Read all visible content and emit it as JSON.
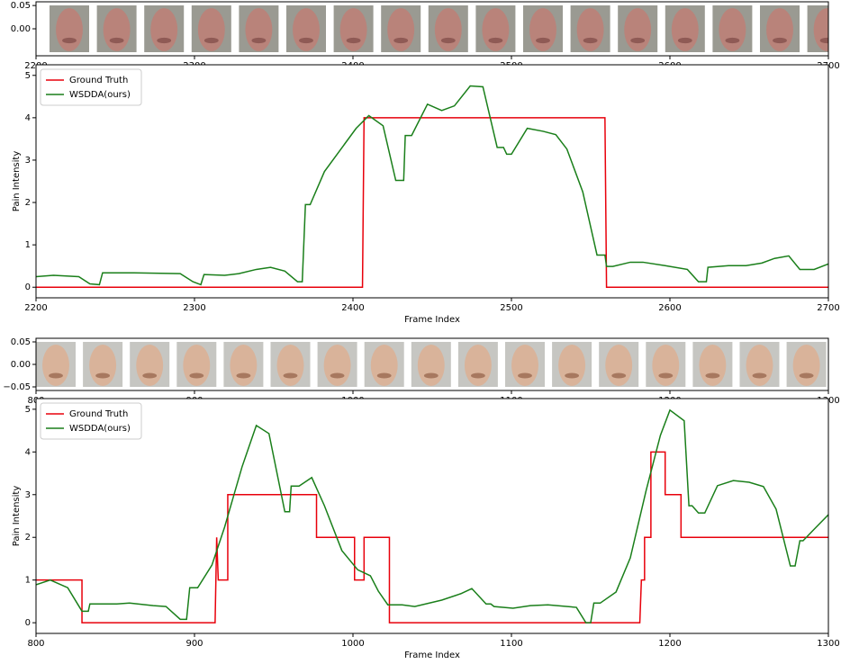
{
  "chart_data": [
    {
      "type": "image-strip",
      "xlim": [
        2200,
        2700
      ],
      "xticks": [
        2200,
        2300,
        2400,
        2500,
        2600,
        2700
      ],
      "ylim": [
        -0.058,
        0.058
      ],
      "yticks": [
        {
          "value": 0.05,
          "label": "0.05"
        },
        {
          "value": 0,
          "label": "0.00"
        }
      ]
    },
    {
      "type": "line",
      "xlabel": "Frame Index",
      "ylabel": "Pain Intensity",
      "legend": "upper left",
      "xlim": [
        2200,
        2700
      ],
      "xticks": [
        2200,
        2300,
        2400,
        2500,
        2600,
        2700
      ],
      "ylim": [
        -0.25,
        5.25
      ],
      "yticks": [
        0,
        1,
        2,
        3,
        4,
        5
      ],
      "series": [
        {
          "name": "Ground Truth",
          "color": "#e8000b",
          "x": [
            2200,
            2406,
            2407,
            2559,
            2560,
            2700
          ],
          "values": [
            0,
            0,
            4,
            4,
            0,
            0
          ]
        },
        {
          "name": "WSDDA(ours)",
          "color": "#1a7f1a",
          "x": [
            2200,
            2211,
            2227,
            2234,
            2240,
            2242,
            2262,
            2291,
            2299,
            2304,
            2306,
            2319,
            2328,
            2339,
            2348,
            2357,
            2365,
            2368,
            2370,
            2373,
            2382,
            2402,
            2410,
            2413,
            2419,
            2427,
            2432,
            2433,
            2437,
            2447,
            2456,
            2464,
            2474,
            2482,
            2491,
            2495,
            2497,
            2500,
            2510,
            2520,
            2528,
            2535,
            2545,
            2554,
            2559,
            2560,
            2564,
            2575,
            2583,
            2597,
            2611,
            2618,
            2623,
            2624,
            2637,
            2648,
            2658,
            2666,
            2675,
            2682,
            2691,
            2700
          ],
          "values": [
            0.25,
            0.28,
            0.25,
            0.08,
            0.06,
            0.34,
            0.34,
            0.32,
            0.13,
            0.06,
            0.3,
            0.28,
            0.32,
            0.42,
            0.47,
            0.38,
            0.13,
            0.13,
            1.95,
            1.95,
            2.73,
            3.75,
            4.05,
            3.97,
            3.81,
            2.52,
            2.52,
            3.58,
            3.58,
            4.32,
            4.17,
            4.28,
            4.75,
            4.73,
            3.3,
            3.3,
            3.14,
            3.14,
            3.75,
            3.68,
            3.6,
            3.26,
            2.25,
            0.76,
            0.76,
            0.49,
            0.49,
            0.59,
            0.59,
            0.51,
            0.42,
            0.13,
            0.13,
            0.47,
            0.51,
            0.51,
            0.57,
            0.68,
            0.74,
            0.42,
            0.42,
            0.55
          ]
        }
      ]
    },
    {
      "type": "image-strip",
      "xlim": [
        800,
        1300
      ],
      "xticks": [
        800,
        900,
        1000,
        1100,
        1200,
        1300
      ],
      "ylim": [
        -0.058,
        0.058
      ],
      "yticks": [
        {
          "value": 0.05,
          "label": "0.05"
        },
        {
          "value": 0,
          "label": "0.00"
        },
        {
          "value": -0.05,
          "label": "−0.05"
        }
      ]
    },
    {
      "type": "line",
      "xlabel": "Frame Index",
      "ylabel": "Pain Intensity",
      "legend": "upper left",
      "xlim": [
        800,
        1300
      ],
      "xticks": [
        800,
        900,
        1000,
        1100,
        1200,
        1300
      ],
      "ylim": [
        -0.25,
        5.25
      ],
      "yticks": [
        0,
        1,
        2,
        3,
        4,
        5
      ],
      "series": [
        {
          "name": "Ground Truth",
          "color": "#e8000b",
          "x": [
            800,
            829,
            829,
            913,
            914,
            915,
            921,
            921,
            977,
            977,
            1001,
            1001,
            1007,
            1007,
            1023,
            1023,
            1181,
            1182,
            1184,
            1184,
            1188,
            1188,
            1197,
            1197,
            1207,
            1207,
            1300
          ],
          "values": [
            1,
            1,
            0,
            0,
            2,
            1,
            1,
            3,
            3,
            2,
            2,
            1,
            1,
            2,
            2,
            0,
            0,
            1,
            1,
            2,
            2,
            4,
            4,
            3,
            3,
            2,
            2
          ]
        },
        {
          "name": "WSDDA(ours)",
          "color": "#1a7f1a",
          "x": [
            800,
            809,
            820,
            829,
            833,
            834,
            851,
            859,
            874,
            882,
            891,
            895,
            897,
            902,
            911,
            919,
            930,
            939,
            947,
            957,
            960,
            961,
            966,
            974,
            982,
            993,
            1003,
            1011,
            1016,
            1022,
            1031,
            1039,
            1056,
            1068,
            1075,
            1084,
            1087,
            1089,
            1101,
            1112,
            1123,
            1141,
            1147,
            1150,
            1152,
            1156,
            1166,
            1175,
            1185,
            1194,
            1200,
            1209,
            1212,
            1214,
            1218,
            1222,
            1230,
            1240,
            1250,
            1259,
            1267,
            1276,
            1279,
            1282,
            1284,
            1291,
            1300
          ],
          "values": [
            0.89,
            1.0,
            0.82,
            0.27,
            0.27,
            0.44,
            0.44,
            0.46,
            0.4,
            0.38,
            0.08,
            0.08,
            0.82,
            0.82,
            1.35,
            2.24,
            3.65,
            4.62,
            4.43,
            2.6,
            2.6,
            3.2,
            3.2,
            3.4,
            2.74,
            1.69,
            1.24,
            1.1,
            0.74,
            0.42,
            0.42,
            0.38,
            0.53,
            0.68,
            0.8,
            0.44,
            0.44,
            0.38,
            0.34,
            0.4,
            0.42,
            0.36,
            0,
            0,
            0.46,
            0.46,
            0.72,
            1.52,
            3.1,
            4.39,
            4.98,
            4.73,
            2.74,
            2.74,
            2.57,
            2.57,
            3.21,
            3.33,
            3.29,
            3.19,
            2.66,
            1.33,
            1.33,
            1.92,
            1.92,
            2.19,
            2.53
          ]
        }
      ]
    }
  ]
}
